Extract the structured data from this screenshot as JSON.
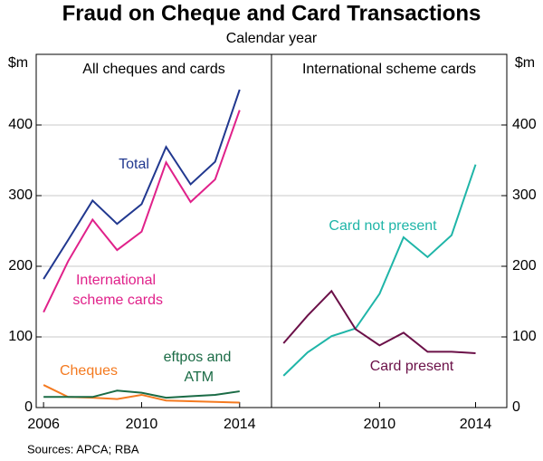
{
  "title": "Fraud on Cheque and Card Transactions",
  "subtitle": "Calendar year",
  "source": "Sources:  APCA; RBA",
  "chart_data": [
    {
      "type": "line",
      "title": "All cheques and cards",
      "y_label": "$m",
      "x": [
        2006,
        2007,
        2008,
        2009,
        2010,
        2011,
        2012,
        2013,
        2014
      ],
      "xlim": [
        2005.7,
        2015.3
      ],
      "xticks": [
        2006,
        2010,
        2014
      ],
      "ylim": [
        0,
        500
      ],
      "yticks": [
        0,
        100,
        200,
        300,
        400
      ],
      "grid": true,
      "series": [
        {
          "name": "Total",
          "color": "#21388f",
          "values": [
            182,
            237,
            293,
            260,
            288,
            369,
            316,
            348,
            450
          ]
        },
        {
          "name": "International scheme cards",
          "color": "#e0218a",
          "values": [
            135,
            207,
            266,
            223,
            249,
            347,
            291,
            323,
            421
          ]
        },
        {
          "name": "Cheques",
          "color": "#f47a20",
          "values": [
            32,
            15,
            14,
            12,
            18,
            10,
            9,
            8,
            7
          ]
        },
        {
          "name": "eftpos and ATM",
          "color": "#1a6b45",
          "values": [
            15,
            15,
            15,
            24,
            21,
            14,
            16,
            18,
            23
          ]
        }
      ]
    },
    {
      "type": "line",
      "title": "International scheme cards",
      "y_label": "$m",
      "x": [
        2006,
        2007,
        2008,
        2009,
        2010,
        2011,
        2012,
        2013,
        2014
      ],
      "xlim": [
        2005.5,
        2015.3
      ],
      "xticks": [
        2010,
        2014
      ],
      "ylim": [
        0,
        500
      ],
      "yticks": [
        0,
        100,
        200,
        300,
        400
      ],
      "grid": true,
      "series": [
        {
          "name": "Card not present",
          "color": "#1fb5a8",
          "values": [
            45,
            78,
            101,
            112,
            161,
            241,
            213,
            244,
            344
          ]
        },
        {
          "name": "Card present",
          "color": "#6b1048",
          "values": [
            91,
            130,
            165,
            111,
            88,
            106,
            79,
            79,
            77
          ]
        }
      ]
    }
  ]
}
